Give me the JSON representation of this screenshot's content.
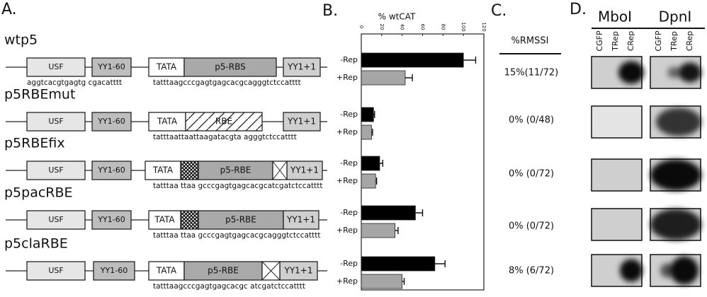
{
  "panel_a": {
    "label": "A.",
    "constructs": [
      {
        "elements": [
          "USF",
          "YY1-60",
          "TATA",
          "p5-RBS",
          "YY1+1"
        ],
        "upstream_sequence": "aggtcacgtgagtg cgacatttt",
        "sequence": "tatttaagcccgagtgagcacgcagggtctccatttt"
      },
      {
        "elements": [
          "USF",
          "YY1-60",
          "TATA",
          "RBE",
          "YY1+1"
        ],
        "sequence": "tatttaattaattaagatacgta agggtctccatttt"
      },
      {
        "elements": [
          "USF",
          "YY1-60",
          "TATA",
          "p5-RBE",
          "YY1+1"
        ],
        "sequence": "tatttaa ttaa gcccgagtgagcacgcatcgatctccatttt"
      },
      {
        "elements": [
          "USF",
          "YY1-60",
          "TATA",
          "p5-RBE",
          "YY1+1"
        ],
        "sequence": "tatttaa ttaa gcccgagtgagcacgcagggtctccatttt"
      },
      {
        "elements": [
          "USF",
          "YY1-60",
          "TATA",
          "p5-RBE",
          "YY1+1"
        ],
        "sequence": "tatttaagcccgagtgagcacgc atcgatctccatttt"
      }
    ]
  },
  "chart_data": {
    "type": "bar",
    "label": "B.",
    "title": "% wtCAT",
    "categories": [
      "wtp5",
      "p5RBEmut",
      "p5RBEfix",
      "p5pacRBE",
      "p5claRBE"
    ],
    "series": [
      {
        "name": "-Rep",
        "color": "#000000",
        "values": [
          100,
          12,
          18,
          53,
          72
        ],
        "errors": [
          12,
          1,
          3,
          7,
          10
        ]
      },
      {
        "name": "+Rep",
        "color": "#a6a6a6",
        "values": [
          43,
          10,
          14,
          33,
          40
        ],
        "errors": [
          7,
          1,
          1,
          3,
          2
        ]
      }
    ],
    "xlim": [
      0,
      120
    ],
    "xticks": [
      0,
      20,
      40,
      60,
      80,
      100,
      120
    ]
  },
  "panel_c": {
    "label": "C.",
    "title": "%RMSSI",
    "rows": [
      "15%(11/72)",
      "0% (0/48)",
      "0% (0/72)",
      "0% (0/72)",
      "8% (6/72)"
    ]
  },
  "panel_d": {
    "label": "D.",
    "groups": [
      "MboI",
      "DpnI"
    ],
    "lanes": [
      "CGFP",
      "TRep",
      "CRep"
    ]
  }
}
